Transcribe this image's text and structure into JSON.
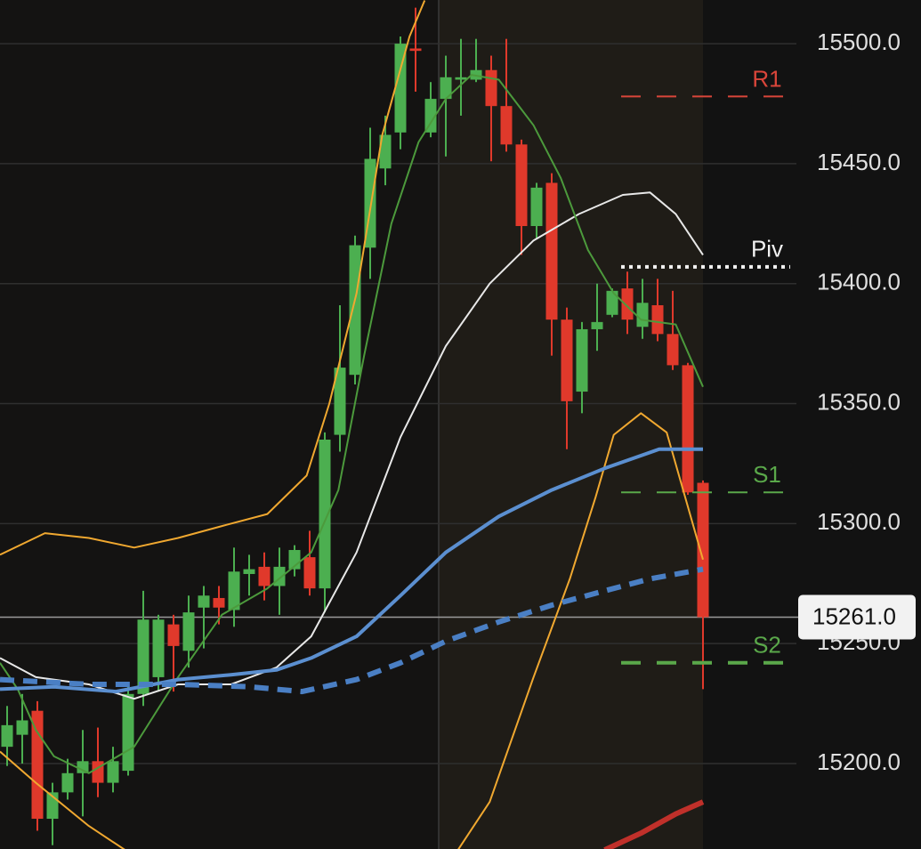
{
  "chart_data": {
    "type": "candlestick",
    "up_color": "#4caf50",
    "down_color": "#e0392b",
    "ylim": [
      15164.4,
      15518.2
    ],
    "yticks": [
      {
        "value": 15500,
        "label": "15500.0"
      },
      {
        "value": 15450,
        "label": "15450.0"
      },
      {
        "value": 15400,
        "label": "15400.0"
      },
      {
        "value": 15350,
        "label": "15350.0"
      },
      {
        "value": 15300,
        "label": "15300.0"
      },
      {
        "value": 15250,
        "label": "15250.0"
      },
      {
        "value": 15200,
        "label": "15200.0"
      }
    ],
    "grid": true,
    "open": [
      15207,
      15212,
      15222,
      15177,
      15188,
      15196,
      15201,
      15192,
      15197,
      15229,
      15236,
      15258,
      15247,
      15265,
      15269,
      15264,
      15279,
      15282,
      15274,
      15281,
      15286,
      15273,
      15337,
      15362,
      15415,
      15448,
      15463,
      15498,
      15463,
      15477,
      15485,
      15485,
      15489,
      15474,
      15458,
      15424,
      15442,
      15385,
      15355,
      15381,
      15387,
      15398,
      15382,
      15391,
      15379,
      15366,
      15317
    ],
    "high": [
      15224,
      15229,
      15226,
      15192,
      15202,
      15214,
      15215,
      15207,
      15233,
      15272,
      15262,
      15262,
      15270,
      15274,
      15274,
      15290,
      15287,
      15288,
      15290,
      15291,
      15297,
      15338,
      15391,
      15420,
      15465,
      15470,
      15503,
      15515,
      15484,
      15495,
      15502,
      15502,
      15495,
      15502,
      15460,
      15442,
      15446,
      15390,
      15384,
      15400,
      15398,
      15405,
      15402,
      15402,
      15397,
      15367,
      15318
    ],
    "low": [
      15199,
      15200,
      15172,
      15166,
      15185,
      15178,
      15186,
      15188,
      15195,
      15224,
      15230,
      15230,
      15240,
      15248,
      15258,
      15257,
      15270,
      15268,
      15262,
      15278,
      15270,
      15263,
      15330,
      15358,
      15402,
      15441,
      15456,
      15480,
      15461,
      15453,
      15470,
      15484,
      15451,
      15455,
      15412,
      15419,
      15370,
      15331,
      15346,
      15372,
      15386,
      15379,
      15377,
      15376,
      15364,
      15312,
      15231
    ],
    "close": [
      15216,
      15218,
      15177,
      15188,
      15196,
      15201,
      15192,
      15201,
      15229,
      15260,
      15260,
      15249,
      15263,
      15270,
      15265,
      15280,
      15281,
      15274,
      15282,
      15289,
      15273,
      15335,
      15365,
      15416,
      15452,
      15462,
      15500,
      15497,
      15477,
      15486,
      15486,
      15489,
      15474,
      15458,
      15424,
      15440,
      15385,
      15351,
      15381,
      15384,
      15397,
      15385,
      15392,
      15379,
      15366,
      15313,
      15261
    ],
    "overlays": [
      {
        "color": "#f0a830",
        "width": 2,
        "x": [
          -0.47,
          2.5,
          5.4,
          8.4,
          11.3,
          14.2,
          17.2,
          19.8,
          21.3,
          23.1,
          24.8,
          26.6,
          27.6
        ],
        "values": [
          15287,
          15296,
          15294,
          15290,
          15294,
          15299,
          15304,
          15320,
          15350,
          15396,
          15462,
          15503,
          15518
        ]
      },
      {
        "color": "#f0a830",
        "width": 2,
        "x": [
          -0.47,
          1.9,
          5.4,
          7.8,
          18,
          29.8,
          31.9,
          34.8,
          37.2,
          38.9,
          40.1,
          41.9,
          43.6,
          46
        ],
        "values": [
          15205,
          15192,
          15174,
          15164,
          null,
          15164,
          15184,
          15236,
          15277,
          15311,
          15337,
          15346,
          15338,
          15285
        ]
      },
      {
        "color": "#e8e8e8",
        "width": 2,
        "x": [
          -0.47,
          1.9,
          5.4,
          8.4,
          11.3,
          14.8,
          17.8,
          20.1,
          23.1,
          26,
          29,
          31.9,
          34.8,
          37.8,
          40.7,
          42.5,
          44.2,
          46
        ],
        "values": [
          15244,
          15236,
          15233,
          15227,
          15233,
          15233,
          15240,
          15253,
          15288,
          15336,
          15374,
          15400,
          15418,
          15429,
          15437,
          15438,
          15429,
          15412
        ]
      },
      {
        "color": "#4c9a3c",
        "width": 2,
        "x": [
          -0.47,
          0.7,
          1.9,
          3.1,
          5.4,
          8.4,
          11.3,
          14.2,
          17.2,
          20.1,
          21.9,
          23.6,
          25.4,
          27.2,
          29,
          30.7,
          32.5,
          34.8,
          36.6,
          38.4,
          40.1,
          41.9,
          44.2,
          46
        ],
        "values": [
          15242,
          15231,
          15214,
          15203,
          15196,
          15207,
          15236,
          15262,
          15273,
          15288,
          15314,
          15370,
          15425,
          15459,
          15477,
          15487,
          15485,
          15466,
          15444,
          15414,
          15396,
          15385,
          15383,
          15357
        ]
      },
      {
        "color": "#5b8fd0",
        "width": 4,
        "x": [
          -0.47,
          3.1,
          7.2,
          11.3,
          14.8,
          17.8,
          20.1,
          23.1,
          26,
          29,
          32.5,
          36,
          39.5,
          43.1,
          46
        ],
        "values": [
          15231,
          15232,
          15230,
          15235,
          15237,
          15239,
          15244,
          15253,
          15270,
          15288,
          15303,
          15314,
          15323,
          15331,
          15331
        ]
      },
      {
        "color": "#4a7fc4",
        "width": 6,
        "dash": true,
        "x": [
          -0.47,
          5.4,
          11.3,
          16,
          19.5,
          23.1,
          26,
          29,
          32.5,
          36,
          39.5,
          42.5,
          46
        ],
        "values": [
          15235,
          15233,
          15233,
          15232,
          15230,
          15235,
          15242,
          15251,
          15259,
          15266,
          15272,
          15277,
          15281
        ]
      },
      {
        "color": "#c0302a",
        "width": 6,
        "x": [
          39.5,
          41.9,
          44.2,
          46
        ],
        "values": [
          15164,
          15171,
          15179,
          15184
        ]
      }
    ],
    "levels": [
      {
        "label": "R1",
        "value": 15478,
        "color": "#d9453a",
        "style": "dashed"
      },
      {
        "label": "Piv",
        "value": 15407,
        "color": "#f2f2f2",
        "style": "dotted"
      },
      {
        "label": "S1",
        "value": 15313,
        "color": "#5aa84a",
        "style": "dashed"
      },
      {
        "label": "S2",
        "value": 15242,
        "color": "#5aa84a",
        "style": "dashed"
      }
    ],
    "last_price": {
      "value": 15261,
      "label": "15261.0"
    }
  }
}
